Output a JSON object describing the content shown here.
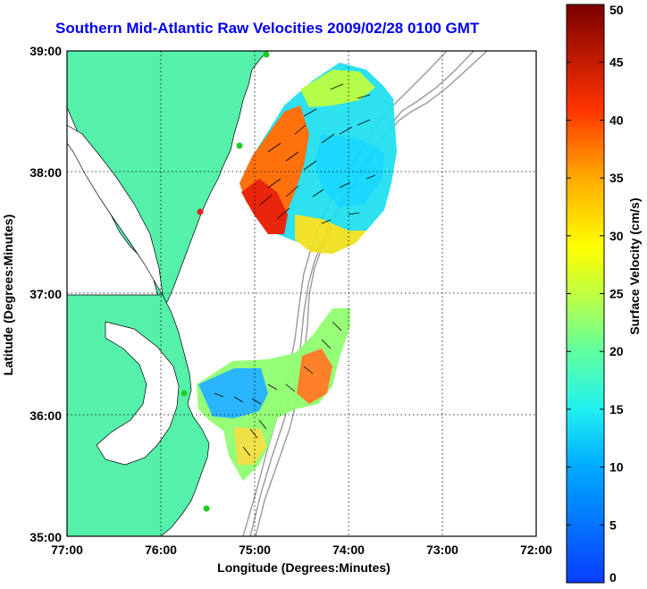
{
  "title": "Southern Mid-Atlantic Raw Velocities 2009/02/28 0100 GMT",
  "xlabel": "Longitude (Degrees:Minutes)",
  "ylabel": "Latitude (Degrees:Minutes)",
  "x_ticks": [
    "77:00",
    "76:00",
    "75:00",
    "74:00",
    "73:00",
    "72:00"
  ],
  "y_ticks": [
    "39:00",
    "38:00",
    "37:00",
    "36:00",
    "35:00"
  ],
  "colorbar": {
    "label": "Surface Velocity (cm/s)",
    "ticks": [
      "0",
      "5",
      "10",
      "15",
      "20",
      "25",
      "30",
      "35",
      "40",
      "45",
      "50"
    ],
    "range": [
      0,
      50
    ]
  },
  "colors": {
    "land": "#55f0aa",
    "bathymetry": "#999999",
    "station_green": "#22cc22",
    "station_red": "#dd2222",
    "title": "#0000ee"
  }
}
